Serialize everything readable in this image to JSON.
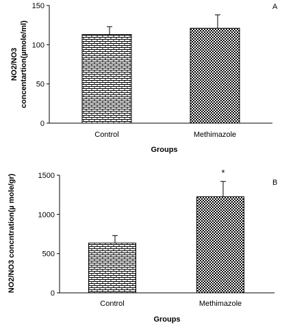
{
  "chart_data": [
    {
      "type": "bar",
      "panel_label": "A",
      "categories": [
        "Control",
        "Methimazole"
      ],
      "values": [
        113,
        121
      ],
      "error": [
        10,
        17
      ],
      "annotations": [
        "",
        ""
      ],
      "xlabel": "Groups",
      "ylabel_lines": [
        "NO2/NO3",
        "concentartion(µmole/ml)"
      ],
      "ylim": [
        0,
        150
      ],
      "yticks": [
        "0",
        "50",
        "100",
        "150"
      ],
      "grid": false,
      "patterns": [
        "brick",
        "checker"
      ]
    },
    {
      "type": "bar",
      "panel_label": "B",
      "categories": [
        "Control",
        "Methimazole"
      ],
      "values": [
        635,
        1225
      ],
      "error": [
        95,
        195
      ],
      "annotations": [
        "",
        "*"
      ],
      "xlabel": "Groups",
      "ylabel_lines": [
        "NO2/NO3 concntration(µ mole/gr)"
      ],
      "ylim": [
        0,
        1500
      ],
      "yticks": [
        "0",
        "500",
        "1000",
        "1500"
      ],
      "grid": false,
      "patterns": [
        "brick",
        "checker"
      ]
    }
  ]
}
